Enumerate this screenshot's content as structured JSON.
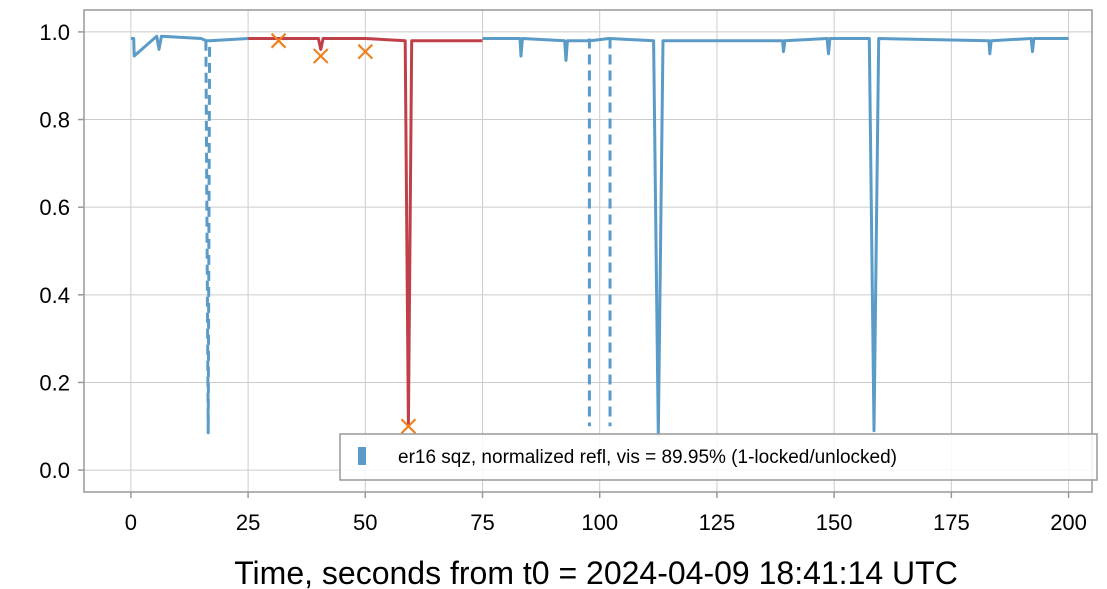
{
  "chart_data": {
    "type": "line",
    "xlabel": "Time, seconds from t0 = 2024-04-09 18:41:14 UTC",
    "ylabel": "",
    "xlim": [
      -10,
      205
    ],
    "ylim": [
      -0.05,
      1.05
    ],
    "x_ticks": [
      0,
      25,
      50,
      75,
      100,
      125,
      150,
      175,
      200
    ],
    "y_ticks": [
      0.0,
      0.2,
      0.4,
      0.6,
      0.8,
      1.0
    ],
    "x_tick_labels": [
      "0",
      "25",
      "50",
      "75",
      "100",
      "125",
      "150",
      "175",
      "200"
    ],
    "y_tick_labels": [
      "0.0",
      "0.2",
      "0.4",
      "0.6",
      "0.8",
      "1.0"
    ],
    "grid": true,
    "legend_position": "lower-right",
    "series": [
      {
        "name": "er16 sqz, normalized refl, vis = 89.95% (1-locked/unlocked)",
        "color": "#5b9bc8",
        "style": "solid",
        "x": [
          0,
          0.6,
          0.7,
          5.5,
          6.0,
          6.5,
          15,
          16.0,
          16.8,
          25
        ],
        "y": [
          0.985,
          0.985,
          0.945,
          0.99,
          0.96,
          0.99,
          0.985,
          0.98,
          0.98,
          0.985
        ]
      },
      {
        "name": "",
        "color": "#5b9bc8",
        "style": "dashed",
        "x": [
          16.0,
          16.5,
          16.8
        ],
        "y": [
          0.98,
          0.085,
          0.98
        ]
      },
      {
        "name": "",
        "color": "#c0404a",
        "style": "solid",
        "x": [
          25,
          40,
          40.5,
          41,
          50,
          58.5,
          59.2,
          59.9,
          75
        ],
        "y": [
          0.985,
          0.985,
          0.96,
          0.985,
          0.985,
          0.98,
          0.1,
          0.98,
          0.98
        ]
      },
      {
        "name": "",
        "color": "#5b9bc8",
        "style": "solid",
        "x": [
          75,
          83,
          83.2,
          83.5,
          92.5,
          92.8,
          93.1,
          98,
          102,
          111.5,
          112.5,
          113.5,
          139,
          139.2,
          139.5,
          148.5,
          148.8,
          149.1,
          157.5,
          158.5,
          159.5,
          183,
          183.2,
          183.5,
          192,
          192.3,
          192.6,
          200
        ],
        "y": [
          0.985,
          0.985,
          0.945,
          0.985,
          0.98,
          0.935,
          0.98,
          0.98,
          0.985,
          0.98,
          0.08,
          0.98,
          0.98,
          0.955,
          0.98,
          0.985,
          0.95,
          0.985,
          0.985,
          0.09,
          0.985,
          0.98,
          0.95,
          0.98,
          0.985,
          0.955,
          0.985,
          0.985
        ]
      },
      {
        "name": "",
        "color": "#5b9bc8",
        "style": "dashed",
        "x": [
          97.8,
          102.2
        ],
        "y": [
          0.985,
          0.985
        ],
        "drops_to": 0.1
      },
      {
        "name": "",
        "color": "#f07f1e",
        "style": "markers-x",
        "x": [
          31.5,
          40.5,
          50,
          59.2
        ],
        "y": [
          0.98,
          0.945,
          0.955,
          0.1
        ]
      }
    ]
  }
}
